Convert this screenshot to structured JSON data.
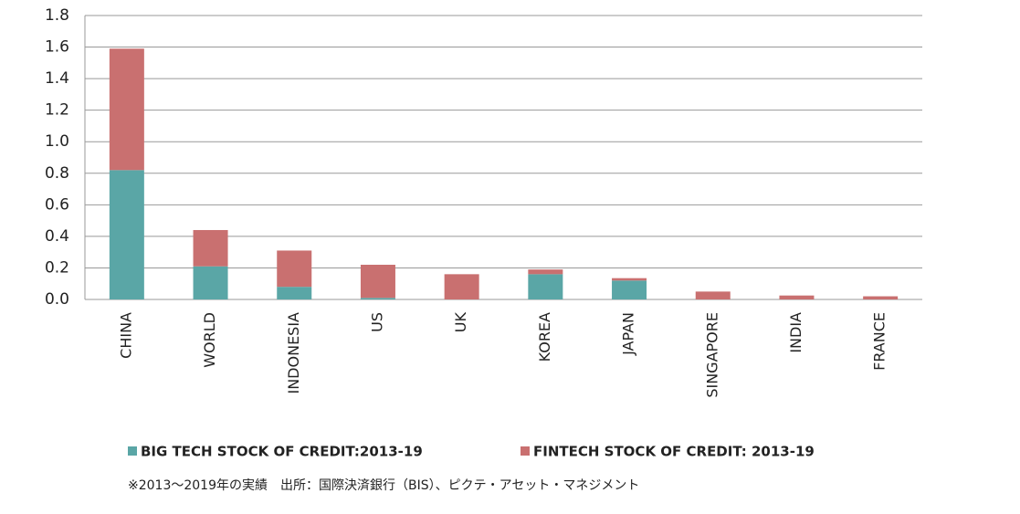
{
  "chart_data": {
    "type": "stacked-bar",
    "categories": [
      "CHINA",
      "WORLD",
      "INDONESIA",
      "US",
      "UK",
      "KOREA",
      "JAPAN",
      "SINGAPORE",
      "INDIA",
      "FRANCE"
    ],
    "series": [
      {
        "name": "BIG TECH STOCK OF CREDIT:2013-19",
        "color": "#5aa6a6",
        "values": [
          0.82,
          0.21,
          0.08,
          0.01,
          0,
          0.16,
          0.12,
          0,
          0,
          0
        ]
      },
      {
        "name": "FINTECH STOCK OF CREDIT: 2013-19",
        "color": "#c97070",
        "values": [
          0.77,
          0.23,
          0.23,
          0.21,
          0.16,
          0.03,
          0.015,
          0.05,
          0.025,
          0.02
        ]
      }
    ],
    "ylim": [
      0,
      1.8
    ],
    "yticks": [
      {
        "value": 0,
        "label": "0.0"
      },
      0.2,
      0.4,
      0.6,
      0.8,
      {
        "value": 1,
        "label": "1.0"
      },
      1.2,
      1.4,
      1.6,
      1.8
    ],
    "grid": true,
    "note": "※2013～2019年の実績　出所：国際決済銀行（BIS）、ピクテ・アセット・マネジメント"
  }
}
